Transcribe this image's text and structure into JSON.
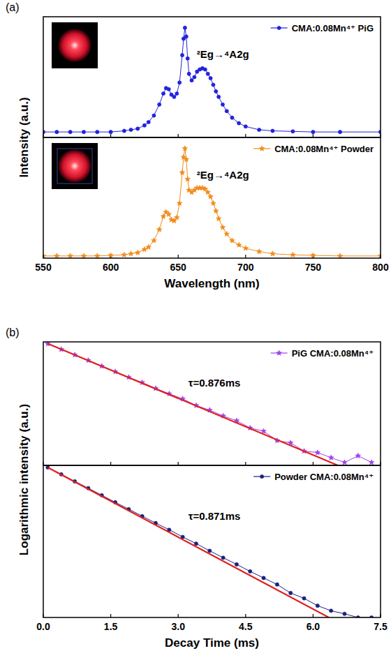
{
  "chart_data": [
    {
      "type": "line",
      "panel_label": "(a)",
      "y_label": "Intensity (a.u.)",
      "annotation": "²Eg→⁴A2g",
      "x": [
        550,
        560,
        570,
        580,
        590,
        600,
        610,
        615,
        620,
        625,
        628,
        632,
        636,
        639,
        641,
        643,
        645,
        647,
        649,
        651,
        653,
        654,
        655,
        656,
        657,
        658,
        660,
        662,
        664,
        666,
        668,
        670,
        672,
        674,
        676,
        678,
        680,
        683,
        686,
        690,
        695,
        700,
        710,
        720,
        735,
        750,
        770,
        800
      ],
      "series": [
        {
          "name": "CMA:0.08Mn⁴⁺ PiG",
          "color": "#2222dd",
          "marker": "circle",
          "values": [
            0.05,
            0.05,
            0.05,
            0.05,
            0.05,
            0.05,
            0.06,
            0.07,
            0.08,
            0.11,
            0.14,
            0.2,
            0.3,
            0.4,
            0.45,
            0.44,
            0.39,
            0.37,
            0.4,
            0.5,
            0.75,
            0.9,
            1.0,
            0.92,
            0.72,
            0.58,
            0.52,
            0.55,
            0.6,
            0.62,
            0.63,
            0.62,
            0.58,
            0.54,
            0.48,
            0.42,
            0.37,
            0.3,
            0.24,
            0.18,
            0.13,
            0.1,
            0.07,
            0.06,
            0.055,
            0.05,
            0.05,
            0.05
          ]
        }
      ],
      "xlim": [
        550,
        800
      ],
      "xticks": [
        550,
        600,
        650,
        700,
        750,
        800
      ],
      "ylim": [
        0,
        1.1
      ],
      "yticks": [],
      "tick_labels": false,
      "legend": "upper right"
    },
    {
      "type": "line",
      "x_label": "Wavelength (nm)",
      "annotation": "²Eg→⁴A2g",
      "x": [
        550,
        560,
        570,
        580,
        590,
        600,
        610,
        615,
        620,
        625,
        628,
        632,
        636,
        639,
        641,
        643,
        645,
        647,
        649,
        651,
        653,
        654,
        655,
        656,
        657,
        658,
        660,
        662,
        664,
        666,
        668,
        670,
        672,
        674,
        676,
        678,
        680,
        683,
        686,
        690,
        695,
        700,
        710,
        720,
        735,
        750,
        770,
        800
      ],
      "series": [
        {
          "name": "CMA:0.08Mn⁴⁺ Powder",
          "color": "#f28c1a",
          "marker": "star",
          "values": [
            0.02,
            0.02,
            0.02,
            0.02,
            0.02,
            0.025,
            0.03,
            0.04,
            0.05,
            0.08,
            0.1,
            0.16,
            0.26,
            0.38,
            0.42,
            0.4,
            0.35,
            0.34,
            0.37,
            0.5,
            0.78,
            0.92,
            1.0,
            0.9,
            0.72,
            0.62,
            0.6,
            0.62,
            0.64,
            0.64,
            0.64,
            0.63,
            0.6,
            0.56,
            0.5,
            0.43,
            0.36,
            0.28,
            0.22,
            0.16,
            0.12,
            0.09,
            0.06,
            0.04,
            0.03,
            0.025,
            0.02,
            0.02
          ]
        }
      ],
      "xlim": [
        550,
        800
      ],
      "xticks": [
        550,
        600,
        650,
        700,
        750,
        800
      ],
      "ylim": [
        0,
        1.1
      ],
      "yticks": [],
      "tick_labels": "x",
      "legend": "upper right"
    },
    {
      "type": "line",
      "panel_label": "(b)",
      "y_label": "Logarithmic intensity (a.u.)",
      "annotation": "τ=0.876ms",
      "x": [
        0.1,
        0.4,
        0.7,
        1.0,
        1.3,
        1.6,
        1.9,
        2.2,
        2.5,
        2.8,
        3.1,
        3.4,
        3.7,
        4.0,
        4.3,
        4.6,
        4.9,
        5.2,
        5.5,
        5.8,
        6.1,
        6.4,
        6.7,
        7.0,
        7.3
      ],
      "series": [
        {
          "name": "PiG CMA:0.08Mn⁴⁺",
          "color": "#a040ee",
          "marker": "star",
          "values": [
            0.89,
            0.63,
            0.45,
            0.32,
            0.225,
            0.16,
            0.113,
            0.082,
            0.057,
            0.041,
            0.03,
            0.02,
            0.015,
            0.0105,
            0.0078,
            0.005,
            0.0041,
            0.0023,
            0.002,
            0.0012,
            0.0011,
            0.0008,
            0.0006,
            0.0009,
            0.0006
          ]
        },
        {
          "color": "#e02020",
          "line_style": "solid",
          "marker": "none",
          "x": [
            0.1,
            6.55
          ],
          "values": [
            0.9,
            0.0005
          ]
        }
      ],
      "xlim": [
        0,
        7.5
      ],
      "xticks": [
        {
          "value": 0,
          "label": "0.0"
        },
        {
          "value": 1.5,
          "label": "1.5"
        },
        {
          "value": 3,
          "label": "3.0"
        },
        {
          "value": 4.5,
          "label": "4.5"
        },
        {
          "value": 6,
          "label": "6.0"
        },
        {
          "value": 7.5,
          "label": "7.5"
        }
      ],
      "ylim": [
        0.0005,
        1
      ],
      "yticks": [],
      "log": "y",
      "tick_labels": false,
      "legend": "upper right"
    },
    {
      "type": "line",
      "x_label": "Decay Time (ms)",
      "annotation": "τ=0.871ms",
      "x": [
        0.1,
        0.4,
        0.7,
        1.0,
        1.3,
        1.6,
        1.9,
        2.2,
        2.5,
        2.8,
        3.1,
        3.4,
        3.7,
        4.0,
        4.3,
        4.6,
        4.9,
        5.2,
        5.5,
        5.8,
        6.1,
        6.4,
        6.7,
        7.0,
        7.3
      ],
      "series": [
        {
          "name": "Powder CMA:0.08Mn⁴⁺",
          "color": "#1a237e",
          "marker": "circle",
          "values": [
            0.9,
            0.64,
            0.45,
            0.32,
            0.225,
            0.158,
            0.112,
            0.079,
            0.056,
            0.04,
            0.028,
            0.02,
            0.014,
            0.0099,
            0.0071,
            0.005,
            0.0036,
            0.0026,
            0.0017,
            0.0013,
            0.0009,
            0.0007,
            0.0006,
            0.0005,
            0.0005
          ]
        },
        {
          "color": "#e02020",
          "line_style": "solid",
          "marker": "none",
          "x": [
            0.1,
            6.35
          ],
          "values": [
            0.9,
            0.0005
          ]
        }
      ],
      "xlim": [
        0,
        7.5
      ],
      "xticks": [
        {
          "value": 0,
          "label": "0.0"
        },
        {
          "value": 1.5,
          "label": "1.5"
        },
        {
          "value": 3,
          "label": "3.0"
        },
        {
          "value": 4.5,
          "label": "4.5"
        },
        {
          "value": 6,
          "label": "6.0"
        },
        {
          "value": 7.5,
          "label": "7.5"
        }
      ],
      "ylim": [
        0.0005,
        1
      ],
      "yticks": [],
      "log": "y",
      "tick_labels": "x",
      "legend": "upper right"
    }
  ]
}
